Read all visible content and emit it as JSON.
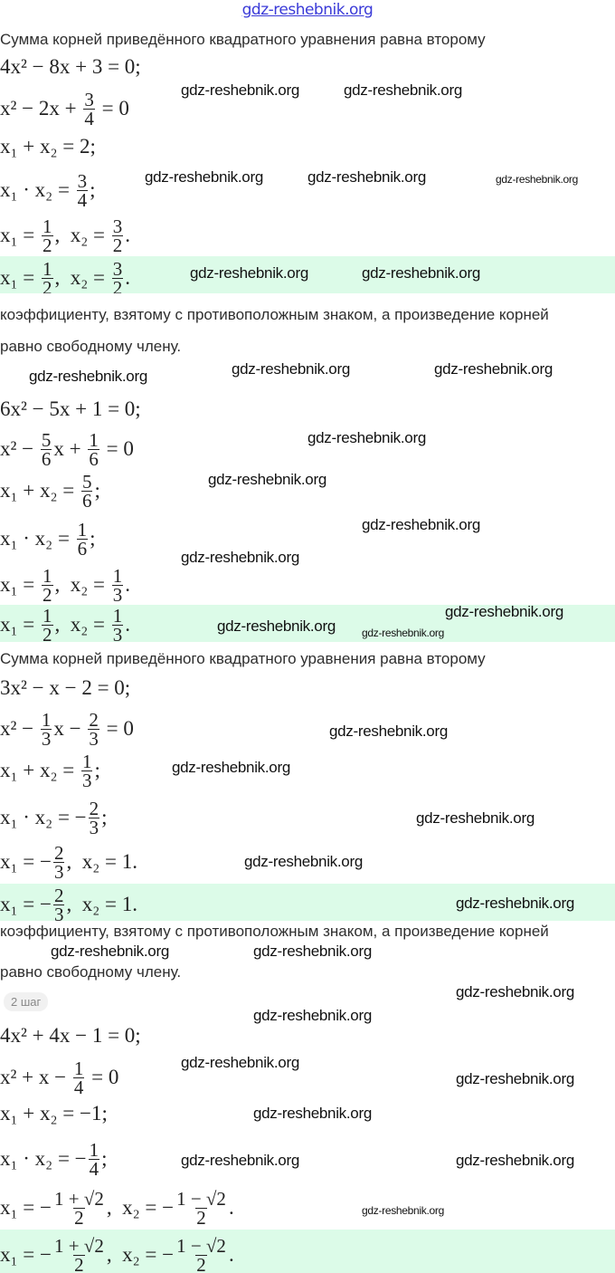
{
  "header": {
    "watermark": "gdz-reshebnik.org"
  },
  "watermark_text": "gdz-reshebnik.org",
  "texts": {
    "rule_start": "Сумма корней приведённого квадратного уравнения равна второму",
    "rule_middle": "коэффициенту, взятому с противоположным знаком, а произведение корней",
    "rule_end": "равно свободному члену."
  },
  "step_badge": "2 шаг",
  "equations": {
    "a1": [
      {
        "t": "4x² − 8x + 3 = 0;"
      }
    ],
    "a2": [
      {
        "t": "x² − 2x + "
      },
      {
        "n": "3",
        "d": "4"
      },
      {
        "t": " = 0"
      }
    ],
    "a3": [
      {
        "t": "x₁ + x₂ = 2;"
      }
    ],
    "a4": [
      {
        "t": "x₁ · x₂ = "
      },
      {
        "n": "3",
        "d": "4"
      },
      {
        "t": ";"
      }
    ],
    "a5": [
      {
        "t": "x₁ = "
      },
      {
        "n": "1",
        "d": "2"
      },
      {
        "t": ",  x₂ = "
      },
      {
        "n": "3",
        "d": "2"
      },
      {
        "t": "."
      }
    ],
    "b1": [
      {
        "t": "6x² − 5x + 1 = 0;"
      }
    ],
    "b2": [
      {
        "t": "x² − "
      },
      {
        "n": "5",
        "d": "6"
      },
      {
        "t": "x + "
      },
      {
        "n": "1",
        "d": "6"
      },
      {
        "t": " = 0"
      }
    ],
    "b3": [
      {
        "t": "x₁ + x₂ = "
      },
      {
        "n": "5",
        "d": "6"
      },
      {
        "t": ";"
      }
    ],
    "b4": [
      {
        "t": "x₁ · x₂ = "
      },
      {
        "n": "1",
        "d": "6"
      },
      {
        "t": ";"
      }
    ],
    "b5": [
      {
        "t": "x₁ = "
      },
      {
        "n": "1",
        "d": "2"
      },
      {
        "t": ",  x₂ = "
      },
      {
        "n": "1",
        "d": "3"
      },
      {
        "t": "."
      }
    ],
    "c1": [
      {
        "t": "3x² − x − 2 = 0;"
      }
    ],
    "c2": [
      {
        "t": "x² − "
      },
      {
        "n": "1",
        "d": "3"
      },
      {
        "t": "x − "
      },
      {
        "n": "2",
        "d": "3"
      },
      {
        "t": " = 0"
      }
    ],
    "c3": [
      {
        "t": "x₁ + x₂ = "
      },
      {
        "n": "1",
        "d": "3"
      },
      {
        "t": ";"
      }
    ],
    "c4": [
      {
        "t": "x₁ · x₂ = −"
      },
      {
        "n": "2",
        "d": "3"
      },
      {
        "t": ";"
      }
    ],
    "c5": [
      {
        "t": "x₁ = −"
      },
      {
        "n": "2",
        "d": "3"
      },
      {
        "t": ",  x₂ = 1."
      }
    ],
    "d1": [
      {
        "t": "4x² + 4x − 1 = 0;"
      }
    ],
    "d2": [
      {
        "t": "x² + x − "
      },
      {
        "n": "1",
        "d": "4"
      },
      {
        "t": " = 0"
      }
    ],
    "d3": [
      {
        "t": "x₁ + x₂ = −1;"
      }
    ],
    "d4": [
      {
        "t": "x₁ · x₂ = −"
      },
      {
        "n": "1",
        "d": "4"
      },
      {
        "t": ";"
      }
    ],
    "d5": [
      {
        "t": "x₁ = −"
      },
      {
        "n": "1 + √2",
        "d": "2"
      },
      {
        "t": ",  x₂ = −"
      },
      {
        "n": "1 − √2",
        "d": "2"
      },
      {
        "t": "."
      }
    ]
  },
  "colors": {
    "answer_highlight": "#dcfbe8",
    "top_watermark": "#3b3bd8"
  }
}
